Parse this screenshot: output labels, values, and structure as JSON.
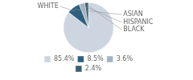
{
  "chart_data": {
    "type": "pie",
    "categories": [
      "WHITE",
      "ASIAN",
      "HISPANIC",
      "BLACK"
    ],
    "values": [
      85.4,
      8.5,
      3.6,
      2.4
    ],
    "value_labels": [
      "85.4%",
      "8.5%",
      "3.6%",
      "2.4%"
    ],
    "colors": [
      "#cdd5e0",
      "#2e5f7e",
      "#a4b4c4",
      "#3a6070"
    ],
    "legend": "bottom"
  }
}
